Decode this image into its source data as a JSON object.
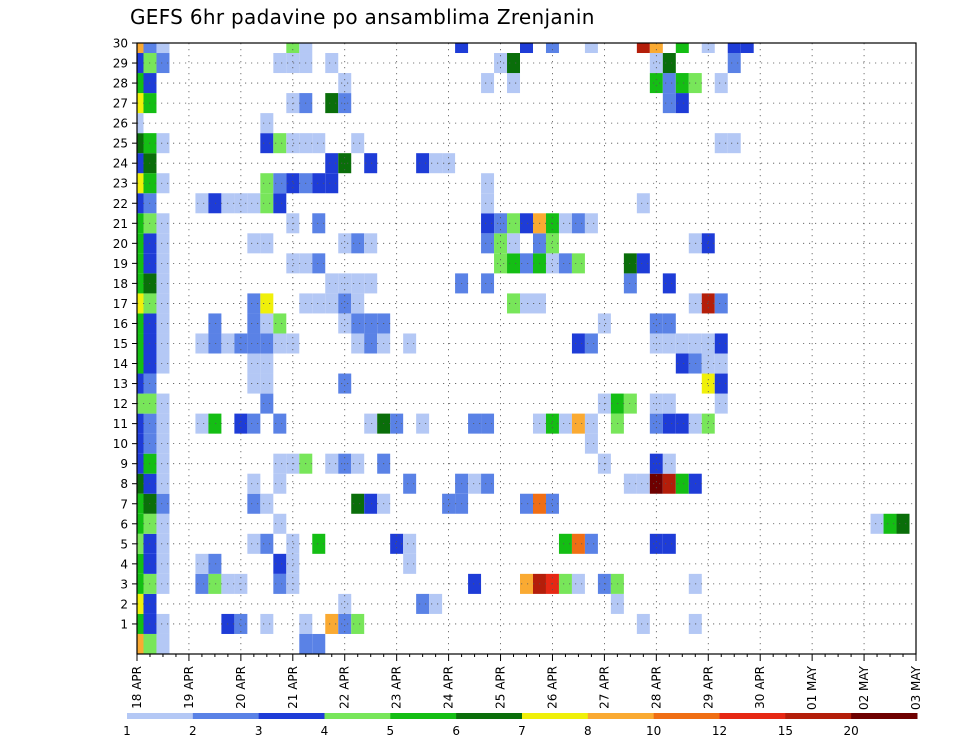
{
  "chart_data": {
    "type": "heatmap",
    "title": "GEFS 6hr padavine po ansamblima Zrenjanin",
    "xlabel": "",
    "ylabel": "",
    "y_ticks": [
      "1",
      "2",
      "3",
      "4",
      "5",
      "6",
      "7",
      "8",
      "9",
      "10",
      "11",
      "12",
      "13",
      "14",
      "15",
      "16",
      "17",
      "18",
      "19",
      "20",
      "21",
      "22",
      "23",
      "24",
      "25",
      "26",
      "27",
      "28",
      "29",
      "30"
    ],
    "x_ticks": [
      "18 APR",
      "19 APR",
      "20 APR",
      "21 APR",
      "22 APR",
      "23 APR",
      "24 APR",
      "25 APR",
      "26 APR",
      "27 APR",
      "28 APR",
      "29 APR",
      "30 APR",
      "01 MAY",
      "02 MAY",
      "03 MAY"
    ],
    "time_steps": 61,
    "grid": true,
    "color_scale": {
      "labels": [
        "1",
        "2",
        "3",
        "4",
        "5",
        "6",
        "7",
        "8",
        "10",
        "12",
        "15",
        "20"
      ],
      "colors": [
        "#b4c8f5",
        "#5a82e6",
        "#1e3cd7",
        "#78e65a",
        "#14be14",
        "#0a6e0a",
        "#f0f00a",
        "#faaa32",
        "#f06e14",
        "#e62814",
        "#b41e0a",
        "#6e0000"
      ]
    },
    "cells": [
      [
        1,
        0,
        5
      ],
      [
        1,
        1,
        3
      ],
      [
        1,
        2,
        1
      ],
      [
        1,
        7,
        3
      ],
      [
        1,
        8,
        2
      ],
      [
        1,
        10,
        1
      ],
      [
        1,
        13,
        1
      ],
      [
        1,
        15,
        8
      ],
      [
        1,
        16,
        2
      ],
      [
        1,
        17,
        4
      ],
      [
        1,
        39,
        1
      ],
      [
        1,
        43,
        1
      ],
      [
        2,
        0,
        7
      ],
      [
        2,
        1,
        3
      ],
      [
        2,
        16,
        1
      ],
      [
        2,
        22,
        2
      ],
      [
        2,
        23,
        1
      ],
      [
        2,
        37,
        1
      ],
      [
        3,
        0,
        5
      ],
      [
        3,
        1,
        4
      ],
      [
        3,
        2,
        1
      ],
      [
        3,
        5,
        2
      ],
      [
        3,
        6,
        4
      ],
      [
        3,
        7,
        1
      ],
      [
        3,
        8,
        1
      ],
      [
        3,
        11,
        2
      ],
      [
        3,
        12,
        1
      ],
      [
        3,
        26,
        3
      ],
      [
        3,
        30,
        8
      ],
      [
        3,
        31,
        11
      ],
      [
        3,
        32,
        10
      ],
      [
        3,
        33,
        4
      ],
      [
        3,
        34,
        1
      ],
      [
        3,
        36,
        2
      ],
      [
        3,
        37,
        4
      ],
      [
        3,
        43,
        1
      ],
      [
        4,
        0,
        5
      ],
      [
        4,
        1,
        3
      ],
      [
        4,
        2,
        1
      ],
      [
        4,
        5,
        1
      ],
      [
        4,
        6,
        2
      ],
      [
        4,
        11,
        3
      ],
      [
        4,
        12,
        1
      ],
      [
        4,
        21,
        1
      ],
      [
        5,
        0,
        4
      ],
      [
        5,
        1,
        3
      ],
      [
        5,
        2,
        1
      ],
      [
        5,
        9,
        1
      ],
      [
        5,
        10,
        2
      ],
      [
        5,
        12,
        1
      ],
      [
        5,
        14,
        5
      ],
      [
        5,
        20,
        3
      ],
      [
        5,
        21,
        1
      ],
      [
        5,
        33,
        5
      ],
      [
        5,
        34,
        9
      ],
      [
        5,
        35,
        2
      ],
      [
        5,
        40,
        3
      ],
      [
        5,
        41,
        3
      ],
      [
        6,
        0,
        5
      ],
      [
        6,
        1,
        4
      ],
      [
        6,
        2,
        1
      ],
      [
        6,
        11,
        1
      ],
      [
        6,
        57,
        1
      ],
      [
        6,
        58,
        5
      ],
      [
        6,
        59,
        6
      ],
      [
        7,
        0,
        5
      ],
      [
        7,
        1,
        6
      ],
      [
        7,
        2,
        2
      ],
      [
        7,
        9,
        2
      ],
      [
        7,
        10,
        1
      ],
      [
        7,
        17,
        6
      ],
      [
        7,
        18,
        3
      ],
      [
        7,
        19,
        1
      ],
      [
        7,
        24,
        2
      ],
      [
        7,
        25,
        2
      ],
      [
        7,
        30,
        2
      ],
      [
        7,
        31,
        9
      ],
      [
        7,
        32,
        2
      ],
      [
        8,
        0,
        6
      ],
      [
        8,
        1,
        3
      ],
      [
        8,
        2,
        1
      ],
      [
        8,
        9,
        1
      ],
      [
        8,
        11,
        1
      ],
      [
        8,
        21,
        2
      ],
      [
        8,
        25,
        2
      ],
      [
        8,
        26,
        1
      ],
      [
        8,
        27,
        2
      ],
      [
        8,
        38,
        1
      ],
      [
        8,
        39,
        1
      ],
      [
        8,
        40,
        12
      ],
      [
        8,
        41,
        11
      ],
      [
        8,
        42,
        5
      ],
      [
        8,
        43,
        3
      ],
      [
        9,
        0,
        3
      ],
      [
        9,
        1,
        5
      ],
      [
        9,
        2,
        1
      ],
      [
        9,
        11,
        1
      ],
      [
        9,
        12,
        1
      ],
      [
        9,
        13,
        4
      ],
      [
        9,
        15,
        1
      ],
      [
        9,
        16,
        2
      ],
      [
        9,
        17,
        1
      ],
      [
        9,
        19,
        2
      ],
      [
        9,
        36,
        1
      ],
      [
        9,
        40,
        3
      ],
      [
        9,
        41,
        1
      ],
      [
        10,
        0,
        3
      ],
      [
        10,
        1,
        2
      ],
      [
        10,
        2,
        1
      ],
      [
        10,
        35,
        1
      ],
      [
        11,
        0,
        3
      ],
      [
        11,
        1,
        2
      ],
      [
        11,
        2,
        1
      ],
      [
        11,
        5,
        1
      ],
      [
        11,
        6,
        5
      ],
      [
        11,
        8,
        3
      ],
      [
        11,
        9,
        2
      ],
      [
        11,
        11,
        2
      ],
      [
        11,
        18,
        1
      ],
      [
        11,
        19,
        6
      ],
      [
        11,
        20,
        2
      ],
      [
        11,
        22,
        1
      ],
      [
        11,
        26,
        2
      ],
      [
        11,
        27,
        2
      ],
      [
        11,
        31,
        1
      ],
      [
        11,
        32,
        5
      ],
      [
        11,
        33,
        1
      ],
      [
        11,
        34,
        8
      ],
      [
        11,
        35,
        1
      ],
      [
        11,
        37,
        4
      ],
      [
        11,
        40,
        2
      ],
      [
        11,
        41,
        3
      ],
      [
        11,
        42,
        3
      ],
      [
        11,
        43,
        1
      ],
      [
        11,
        44,
        4
      ],
      [
        12,
        0,
        4
      ],
      [
        12,
        1,
        4
      ],
      [
        12,
        2,
        1
      ],
      [
        12,
        10,
        2
      ],
      [
        12,
        36,
        1
      ],
      [
        12,
        37,
        5
      ],
      [
        12,
        38,
        4
      ],
      [
        12,
        40,
        1
      ],
      [
        12,
        41,
        1
      ],
      [
        12,
        45,
        1
      ],
      [
        13,
        0,
        3
      ],
      [
        13,
        1,
        2
      ],
      [
        13,
        9,
        1
      ],
      [
        13,
        10,
        1
      ],
      [
        13,
        16,
        2
      ],
      [
        13,
        44,
        7
      ],
      [
        13,
        45,
        3
      ],
      [
        14,
        0,
        5
      ],
      [
        14,
        1,
        3
      ],
      [
        14,
        2,
        1
      ],
      [
        14,
        9,
        1
      ],
      [
        14,
        10,
        1
      ],
      [
        14,
        42,
        3
      ],
      [
        14,
        43,
        2
      ],
      [
        14,
        44,
        1
      ],
      [
        14,
        45,
        1
      ],
      [
        15,
        0,
        5
      ],
      [
        15,
        1,
        3
      ],
      [
        15,
        2,
        1
      ],
      [
        15,
        5,
        1
      ],
      [
        15,
        6,
        2
      ],
      [
        15,
        7,
        1
      ],
      [
        15,
        8,
        2
      ],
      [
        15,
        9,
        2
      ],
      [
        15,
        10,
        2
      ],
      [
        15,
        11,
        1
      ],
      [
        15,
        12,
        1
      ],
      [
        15,
        17,
        1
      ],
      [
        15,
        18,
        2
      ],
      [
        15,
        19,
        1
      ],
      [
        15,
        21,
        1
      ],
      [
        15,
        34,
        3
      ],
      [
        15,
        35,
        2
      ],
      [
        15,
        40,
        1
      ],
      [
        15,
        41,
        1
      ],
      [
        15,
        42,
        1
      ],
      [
        15,
        43,
        1
      ],
      [
        15,
        44,
        1
      ],
      [
        15,
        45,
        3
      ],
      [
        16,
        0,
        5
      ],
      [
        16,
        1,
        3
      ],
      [
        16,
        2,
        1
      ],
      [
        16,
        6,
        2
      ],
      [
        16,
        9,
        2
      ],
      [
        16,
        10,
        1
      ],
      [
        16,
        11,
        4
      ],
      [
        16,
        16,
        1
      ],
      [
        16,
        17,
        2
      ],
      [
        16,
        18,
        2
      ],
      [
        16,
        19,
        2
      ],
      [
        16,
        36,
        1
      ],
      [
        16,
        40,
        2
      ],
      [
        16,
        41,
        2
      ],
      [
        17,
        0,
        7
      ],
      [
        17,
        1,
        4
      ],
      [
        17,
        2,
        1
      ],
      [
        17,
        9,
        2
      ],
      [
        17,
        10,
        7
      ],
      [
        17,
        13,
        1
      ],
      [
        17,
        14,
        1
      ],
      [
        17,
        15,
        1
      ],
      [
        17,
        16,
        2
      ],
      [
        17,
        17,
        1
      ],
      [
        17,
        29,
        4
      ],
      [
        17,
        30,
        1
      ],
      [
        17,
        31,
        1
      ],
      [
        17,
        43,
        1
      ],
      [
        17,
        44,
        11
      ],
      [
        17,
        45,
        2
      ],
      [
        18,
        0,
        5
      ],
      [
        18,
        1,
        6
      ],
      [
        18,
        2,
        1
      ],
      [
        18,
        15,
        1
      ],
      [
        18,
        16,
        1
      ],
      [
        18,
        17,
        1
      ],
      [
        18,
        18,
        1
      ],
      [
        18,
        25,
        2
      ],
      [
        18,
        27,
        2
      ],
      [
        18,
        38,
        2
      ],
      [
        18,
        41,
        3
      ],
      [
        19,
        0,
        5
      ],
      [
        19,
        1,
        3
      ],
      [
        19,
        2,
        1
      ],
      [
        19,
        12,
        1
      ],
      [
        19,
        13,
        1
      ],
      [
        19,
        14,
        2
      ],
      [
        19,
        28,
        4
      ],
      [
        19,
        29,
        5
      ],
      [
        19,
        30,
        2
      ],
      [
        19,
        31,
        5
      ],
      [
        19,
        32,
        1
      ],
      [
        19,
        33,
        2
      ],
      [
        19,
        34,
        4
      ],
      [
        19,
        38,
        6
      ],
      [
        19,
        39,
        3
      ],
      [
        20,
        0,
        5
      ],
      [
        20,
        1,
        3
      ],
      [
        20,
        2,
        1
      ],
      [
        20,
        9,
        1
      ],
      [
        20,
        10,
        1
      ],
      [
        20,
        16,
        1
      ],
      [
        20,
        17,
        2
      ],
      [
        20,
        18,
        1
      ],
      [
        20,
        27,
        2
      ],
      [
        20,
        28,
        4
      ],
      [
        20,
        29,
        1
      ],
      [
        20,
        31,
        2
      ],
      [
        20,
        32,
        4
      ],
      [
        20,
        43,
        1
      ],
      [
        20,
        44,
        3
      ],
      [
        21,
        0,
        5
      ],
      [
        21,
        1,
        4
      ],
      [
        21,
        2,
        1
      ],
      [
        21,
        12,
        1
      ],
      [
        21,
        14,
        2
      ],
      [
        21,
        27,
        3
      ],
      [
        21,
        28,
        2
      ],
      [
        21,
        29,
        4
      ],
      [
        21,
        30,
        3
      ],
      [
        21,
        31,
        8
      ],
      [
        21,
        32,
        5
      ],
      [
        21,
        33,
        1
      ],
      [
        21,
        34,
        2
      ],
      [
        21,
        35,
        1
      ],
      [
        22,
        0,
        3
      ],
      [
        22,
        1,
        2
      ],
      [
        22,
        5,
        1
      ],
      [
        22,
        6,
        3
      ],
      [
        22,
        7,
        1
      ],
      [
        22,
        8,
        1
      ],
      [
        22,
        9,
        1
      ],
      [
        22,
        10,
        4
      ],
      [
        22,
        11,
        3
      ],
      [
        22,
        27,
        1
      ],
      [
        22,
        39,
        1
      ],
      [
        23,
        0,
        7
      ],
      [
        23,
        1,
        5
      ],
      [
        23,
        2,
        1
      ],
      [
        23,
        10,
        4
      ],
      [
        23,
        11,
        2
      ],
      [
        23,
        12,
        3
      ],
      [
        23,
        13,
        2
      ],
      [
        23,
        14,
        3
      ],
      [
        23,
        15,
        3
      ],
      [
        23,
        27,
        1
      ],
      [
        24,
        0,
        3
      ],
      [
        24,
        1,
        6
      ],
      [
        24,
        15,
        3
      ],
      [
        24,
        16,
        6
      ],
      [
        24,
        18,
        3
      ],
      [
        24,
        22,
        3
      ],
      [
        24,
        23,
        1
      ],
      [
        24,
        24,
        1
      ],
      [
        25,
        0,
        6
      ],
      [
        25,
        1,
        5
      ],
      [
        25,
        2,
        1
      ],
      [
        25,
        10,
        3
      ],
      [
        25,
        11,
        4
      ],
      [
        25,
        12,
        1
      ],
      [
        25,
        13,
        1
      ],
      [
        25,
        14,
        1
      ],
      [
        25,
        17,
        1
      ],
      [
        25,
        45,
        1
      ],
      [
        25,
        46,
        1
      ],
      [
        26,
        0,
        1
      ],
      [
        26,
        10,
        1
      ],
      [
        27,
        0,
        7
      ],
      [
        27,
        1,
        5
      ],
      [
        27,
        12,
        1
      ],
      [
        27,
        13,
        2
      ],
      [
        27,
        15,
        6
      ],
      [
        27,
        16,
        2
      ],
      [
        27,
        41,
        2
      ],
      [
        27,
        42,
        3
      ],
      [
        28,
        0,
        5
      ],
      [
        28,
        1,
        3
      ],
      [
        28,
        16,
        1
      ],
      [
        28,
        27,
        1
      ],
      [
        28,
        29,
        1
      ],
      [
        28,
        40,
        5
      ],
      [
        28,
        41,
        2
      ],
      [
        28,
        42,
        5
      ],
      [
        28,
        43,
        4
      ],
      [
        28,
        45,
        1
      ],
      [
        29,
        0,
        3
      ],
      [
        29,
        1,
        4
      ],
      [
        29,
        2,
        2
      ],
      [
        29,
        11,
        1
      ],
      [
        29,
        12,
        1
      ],
      [
        29,
        13,
        1
      ],
      [
        29,
        15,
        1
      ],
      [
        29,
        28,
        1
      ],
      [
        29,
        29,
        6
      ],
      [
        29,
        40,
        1
      ],
      [
        29,
        41,
        6
      ],
      [
        29,
        46,
        2
      ],
      [
        30,
        0,
        8
      ],
      [
        30,
        1,
        2
      ],
      [
        30,
        2,
        1
      ],
      [
        30,
        12,
        4
      ],
      [
        30,
        13,
        1
      ],
      [
        30,
        25,
        3
      ],
      [
        30,
        30,
        3
      ],
      [
        30,
        32,
        2
      ],
      [
        30,
        35,
        1
      ],
      [
        30,
        39,
        11
      ],
      [
        30,
        40,
        8
      ],
      [
        30,
        42,
        5
      ],
      [
        30,
        44,
        1
      ],
      [
        30,
        46,
        3
      ],
      [
        30,
        47,
        3
      ],
      [
        0,
        0,
        8
      ],
      [
        0,
        1,
        4
      ],
      [
        0,
        2,
        1
      ],
      [
        0,
        13,
        2
      ],
      [
        0,
        14,
        2
      ]
    ]
  }
}
